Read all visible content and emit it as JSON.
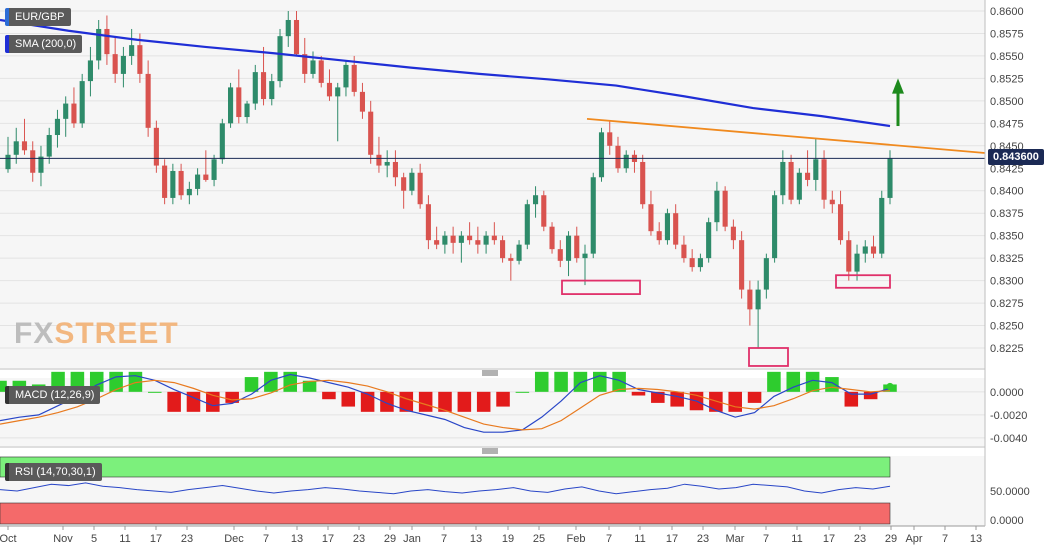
{
  "header": {
    "pair_label": "EUR/GBP",
    "sma_label": "SMA (200,0)",
    "macd_label": "MACD (12,26,9)",
    "rsi_label": "RSI (14,70,30,1)"
  },
  "watermark": {
    "part1": "FX",
    "part2": "STREET"
  },
  "current_price_label": "0.843600",
  "colors": {
    "up": "#2e8b6a",
    "down": "#d9534f",
    "sma": "#1f2ed6",
    "trendline": "#f08a1f",
    "box": "#e0306a",
    "arrow": "#1d8a1d",
    "macd_line": "#2946c7",
    "signal_line": "#e87a1f",
    "hist_up": "#2ecc2e",
    "hist_down": "#e21b1b",
    "rsi_line": "#2946c7",
    "rsi_overbought": "#7cf07c",
    "rsi_oversold": "#f46a6a"
  },
  "chart_data": [
    {
      "type": "candlestick",
      "title": "EUR/GBP",
      "ylim": [
        0.8205,
        0.8613
      ],
      "yticks": [
        "0.8600",
        "0.8575",
        "0.8550",
        "0.8525",
        "0.8500",
        "0.8475",
        "0.8450",
        "0.8425",
        "0.8400",
        "0.8375",
        "0.8350",
        "0.8325",
        "0.8300",
        "0.8275",
        "0.8250",
        "0.8225"
      ],
      "xticks": [
        "Oct",
        "Nov",
        "5",
        "11",
        "17",
        "23",
        "Dec",
        "7",
        "13",
        "17",
        "23",
        "29",
        "Jan",
        "7",
        "13",
        "19",
        "25",
        "Feb",
        "7",
        "11",
        "17",
        "23",
        "Mar",
        "7",
        "11",
        "17",
        "23",
        "29",
        "Apr",
        "7",
        "13"
      ],
      "ohlc": [
        [
          0.8424,
          0.846,
          0.842,
          0.844
        ],
        [
          0.844,
          0.847,
          0.843,
          0.8455
        ],
        [
          0.8455,
          0.848,
          0.844,
          0.8445
        ],
        [
          0.8445,
          0.8455,
          0.841,
          0.842
        ],
        [
          0.842,
          0.845,
          0.8405,
          0.8438
        ],
        [
          0.8438,
          0.847,
          0.843,
          0.8462
        ],
        [
          0.8462,
          0.849,
          0.8448,
          0.848
        ],
        [
          0.848,
          0.8505,
          0.846,
          0.8497
        ],
        [
          0.8497,
          0.8515,
          0.847,
          0.8475
        ],
        [
          0.8475,
          0.853,
          0.847,
          0.8522
        ],
        [
          0.8522,
          0.856,
          0.8505,
          0.8545
        ],
        [
          0.8545,
          0.859,
          0.8535,
          0.858
        ],
        [
          0.858,
          0.8595,
          0.854,
          0.8552
        ],
        [
          0.8552,
          0.857,
          0.852,
          0.853
        ],
        [
          0.853,
          0.856,
          0.8515,
          0.855
        ],
        [
          0.855,
          0.858,
          0.854,
          0.8562
        ],
        [
          0.8562,
          0.8575,
          0.852,
          0.853
        ],
        [
          0.853,
          0.8545,
          0.846,
          0.847
        ],
        [
          0.847,
          0.8478,
          0.842,
          0.8428
        ],
        [
          0.8428,
          0.8435,
          0.8385,
          0.8392
        ],
        [
          0.8392,
          0.843,
          0.8385,
          0.8422
        ],
        [
          0.8422,
          0.843,
          0.839,
          0.8395
        ],
        [
          0.8395,
          0.841,
          0.8385,
          0.8402
        ],
        [
          0.8402,
          0.8425,
          0.8395,
          0.8418
        ],
        [
          0.8418,
          0.8445,
          0.841,
          0.8412
        ],
        [
          0.8412,
          0.844,
          0.8405,
          0.8435
        ],
        [
          0.8435,
          0.848,
          0.843,
          0.8475
        ],
        [
          0.8475,
          0.852,
          0.847,
          0.8515
        ],
        [
          0.8515,
          0.8535,
          0.8475,
          0.8482
        ],
        [
          0.8482,
          0.85,
          0.8475,
          0.8497
        ],
        [
          0.8497,
          0.854,
          0.849,
          0.8532
        ],
        [
          0.8532,
          0.856,
          0.8495,
          0.8502
        ],
        [
          0.8502,
          0.853,
          0.8495,
          0.8522
        ],
        [
          0.8522,
          0.858,
          0.8515,
          0.8572
        ],
        [
          0.8572,
          0.86,
          0.856,
          0.859
        ],
        [
          0.859,
          0.86,
          0.855,
          0.8552
        ],
        [
          0.8552,
          0.857,
          0.852,
          0.853
        ],
        [
          0.853,
          0.8555,
          0.8525,
          0.8545
        ],
        [
          0.8545,
          0.855,
          0.8515,
          0.852
        ],
        [
          0.852,
          0.8535,
          0.85,
          0.8505
        ],
        [
          0.8505,
          0.852,
          0.8455,
          0.8515
        ],
        [
          0.8515,
          0.8545,
          0.8505,
          0.854
        ],
        [
          0.854,
          0.855,
          0.8505,
          0.851
        ],
        [
          0.851,
          0.852,
          0.848,
          0.8488
        ],
        [
          0.8488,
          0.85,
          0.843,
          0.844
        ],
        [
          0.844,
          0.846,
          0.842,
          0.8428
        ],
        [
          0.8428,
          0.8445,
          0.8415,
          0.8432
        ],
        [
          0.8432,
          0.8445,
          0.8405,
          0.8415
        ],
        [
          0.8415,
          0.842,
          0.838,
          0.84
        ],
        [
          0.84,
          0.8425,
          0.8395,
          0.842
        ],
        [
          0.842,
          0.843,
          0.838,
          0.8385
        ],
        [
          0.8385,
          0.8395,
          0.8335,
          0.8345
        ],
        [
          0.8345,
          0.836,
          0.8335,
          0.834
        ],
        [
          0.834,
          0.8355,
          0.833,
          0.835
        ],
        [
          0.835,
          0.836,
          0.833,
          0.8342
        ],
        [
          0.8342,
          0.8355,
          0.832,
          0.835
        ],
        [
          0.835,
          0.8365,
          0.834,
          0.8345
        ],
        [
          0.8345,
          0.836,
          0.833,
          0.834
        ],
        [
          0.834,
          0.8355,
          0.833,
          0.835
        ],
        [
          0.835,
          0.8365,
          0.834,
          0.8345
        ],
        [
          0.8345,
          0.835,
          0.832,
          0.8325
        ],
        [
          0.8325,
          0.833,
          0.83,
          0.8322
        ],
        [
          0.8322,
          0.8345,
          0.8318,
          0.834
        ],
        [
          0.834,
          0.839,
          0.8335,
          0.8385
        ],
        [
          0.8385,
          0.8405,
          0.837,
          0.8395
        ],
        [
          0.8395,
          0.84,
          0.8355,
          0.836
        ],
        [
          0.836,
          0.8365,
          0.833,
          0.8335
        ],
        [
          0.8335,
          0.8345,
          0.8315,
          0.8322
        ],
        [
          0.8322,
          0.8355,
          0.8305,
          0.835
        ],
        [
          0.835,
          0.836,
          0.832,
          0.8325
        ],
        [
          0.8325,
          0.834,
          0.8295,
          0.833
        ],
        [
          0.833,
          0.842,
          0.8325,
          0.8415
        ],
        [
          0.8415,
          0.847,
          0.841,
          0.8465
        ],
        [
          0.8465,
          0.8478,
          0.844,
          0.845
        ],
        [
          0.845,
          0.846,
          0.842,
          0.8425
        ],
        [
          0.8425,
          0.8445,
          0.842,
          0.844
        ],
        [
          0.844,
          0.8445,
          0.842,
          0.8432
        ],
        [
          0.8432,
          0.844,
          0.838,
          0.8385
        ],
        [
          0.8385,
          0.84,
          0.835,
          0.8355
        ],
        [
          0.8355,
          0.8365,
          0.834,
          0.8345
        ],
        [
          0.8345,
          0.838,
          0.834,
          0.8375
        ],
        [
          0.8375,
          0.8385,
          0.8335,
          0.834
        ],
        [
          0.834,
          0.835,
          0.832,
          0.8325
        ],
        [
          0.8325,
          0.8335,
          0.831,
          0.8315
        ],
        [
          0.8315,
          0.833,
          0.831,
          0.8325
        ],
        [
          0.8325,
          0.837,
          0.832,
          0.8365
        ],
        [
          0.8365,
          0.841,
          0.8355,
          0.84
        ],
        [
          0.84,
          0.8405,
          0.8355,
          0.836
        ],
        [
          0.836,
          0.8368,
          0.8335,
          0.8345
        ],
        [
          0.8345,
          0.8355,
          0.828,
          0.829
        ],
        [
          0.829,
          0.83,
          0.825,
          0.8268
        ],
        [
          0.8268,
          0.83,
          0.8225,
          0.829
        ],
        [
          0.829,
          0.833,
          0.828,
          0.8325
        ],
        [
          0.8325,
          0.84,
          0.832,
          0.8395
        ],
        [
          0.8395,
          0.8445,
          0.8385,
          0.8432
        ],
        [
          0.8432,
          0.844,
          0.8385,
          0.839
        ],
        [
          0.839,
          0.8425,
          0.8385,
          0.842
        ],
        [
          0.842,
          0.8445,
          0.8405,
          0.8412
        ],
        [
          0.8412,
          0.8458,
          0.84,
          0.8435
        ],
        [
          0.8435,
          0.8445,
          0.838,
          0.839
        ],
        [
          0.839,
          0.84,
          0.8375,
          0.8385
        ],
        [
          0.8385,
          0.84,
          0.834,
          0.8345
        ],
        [
          0.8345,
          0.8355,
          0.83,
          0.831
        ],
        [
          0.831,
          0.834,
          0.83,
          0.833
        ],
        [
          0.833,
          0.8345,
          0.832,
          0.8338
        ],
        [
          0.8338,
          0.835,
          0.8325,
          0.833
        ],
        [
          0.833,
          0.84,
          0.8325,
          0.8392
        ],
        [
          0.8392,
          0.8445,
          0.8385,
          0.8436
        ]
      ],
      "sma_200": [
        0.859,
        0.8578,
        0.8568,
        0.856,
        0.8553,
        0.8545,
        0.8537,
        0.853,
        0.8524,
        0.8517,
        0.8505,
        0.8492,
        0.8483,
        0.8472
      ],
      "trendline": {
        "start": 0.848,
        "end": 0.8442
      },
      "current_price": 0.8436
    },
    {
      "type": "line",
      "title": "MACD (12,26,9)",
      "ylim": [
        -0.0047,
        0.0012
      ],
      "yticks": [
        "0.0000",
        "-0.0020",
        "-0.0040"
      ],
      "series": [
        {
          "name": "MACD",
          "values": [
            -0.0025,
            -0.0022,
            -0.002,
            -0.0012,
            -0.0004,
            0.0006,
            0.0013,
            0.0014,
            0.001,
            0.0002,
            -0.0005,
            -0.0012,
            -0.001,
            -0.0002,
            0.001,
            0.0015,
            0.0012,
            0.0008,
            0.0004,
            -0.0002,
            -0.001,
            -0.0016,
            -0.002,
            -0.0024,
            -0.0031,
            -0.0035,
            -0.0035,
            -0.0033,
            -0.0022,
            -0.0008,
            0.0008,
            0.0014,
            0.001,
            0.0002,
            -0.0001,
            -0.0004,
            -0.0008,
            -0.0016,
            -0.0022,
            -0.0018,
            -0.0004,
            0.0004,
            0.001,
            0.0008,
            -0.0002,
            -0.0002,
            0.0003
          ]
        },
        {
          "name": "Signal",
          "values": [
            -0.0028,
            -0.0025,
            -0.0022,
            -0.0018,
            -0.0013,
            -0.0006,
            0.0002,
            0.0008,
            0.001,
            0.0008,
            0.0003,
            -0.0003,
            -0.0007,
            -0.0006,
            -0.0001,
            0.0006,
            0.0009,
            0.001,
            0.0008,
            0.0005,
            0.0,
            -0.0006,
            -0.0011,
            -0.0016,
            -0.0022,
            -0.0028,
            -0.0031,
            -0.0033,
            -0.0032,
            -0.0025,
            -0.0014,
            -0.0003,
            0.0002,
            0.0003,
            0.0002,
            0.0,
            -0.0003,
            -0.0008,
            -0.0013,
            -0.0015,
            -0.0012,
            -0.0006,
            0.0001,
            0.0004,
            0.0002,
            0.0,
            0.0001
          ]
        }
      ]
    },
    {
      "type": "line",
      "title": "RSI (14,70,30,1)",
      "ylim": [
        0,
        100
      ],
      "yticks": [
        "50.0000",
        "0.0000"
      ],
      "overbought": 70,
      "oversold": 30,
      "series": [
        {
          "name": "RSI",
          "values": [
            52,
            50,
            55,
            60,
            58,
            62,
            57,
            55,
            52,
            50,
            48,
            52,
            55,
            58,
            54,
            50,
            47,
            50,
            52,
            55,
            53,
            50,
            48,
            46,
            50,
            52,
            49,
            47,
            50,
            52,
            55,
            50,
            48,
            53,
            56,
            50,
            46,
            49,
            52,
            54,
            60,
            57,
            53,
            55,
            60,
            58,
            56,
            50,
            47,
            52,
            55,
            53,
            57
          ]
        }
      ]
    }
  ]
}
